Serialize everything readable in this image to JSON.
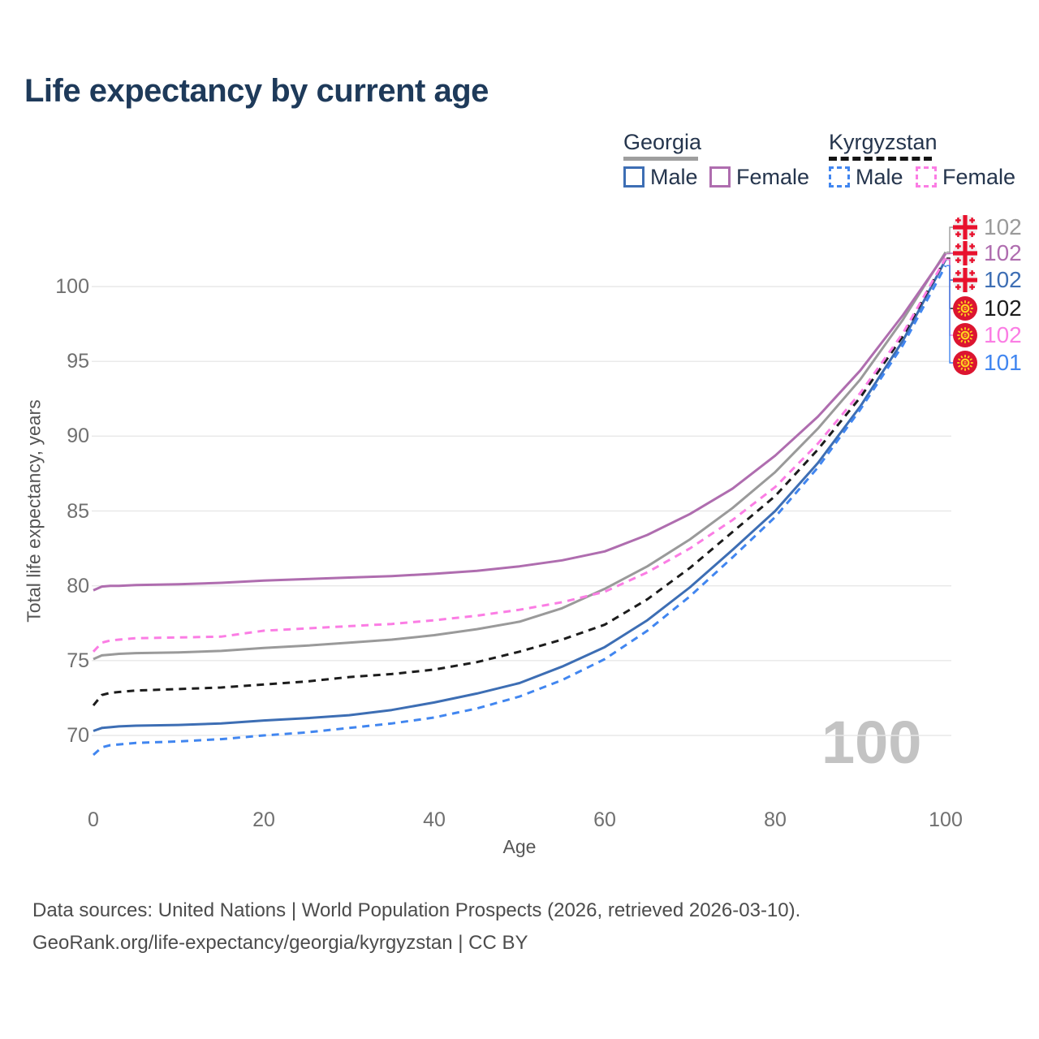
{
  "title": "Life expectancy by current age",
  "legend": {
    "groups": [
      {
        "country": "Georgia",
        "line_style": "solid",
        "underline_color": "#9e9e9e",
        "items": [
          {
            "label": "Male",
            "color": "#3d6eb4"
          },
          {
            "label": "Female",
            "color": "#af6daf"
          }
        ]
      },
      {
        "country": "Kyrgyzstan",
        "line_style": "dashed",
        "underline_color": "#141414",
        "items": [
          {
            "label": "Male",
            "color": "#4186f0"
          },
          {
            "label": "Female",
            "color": "#fb7de4"
          }
        ]
      }
    ]
  },
  "chart_data": {
    "type": "line",
    "title": "Life expectancy by current age",
    "xlabel": "Age",
    "ylabel": "Total life expectancy, years",
    "xlim": [
      0,
      100
    ],
    "ylim": [
      67,
      103
    ],
    "xticks": [
      0,
      20,
      40,
      60,
      80,
      100
    ],
    "yticks": [
      70,
      75,
      80,
      85,
      90,
      95,
      100
    ],
    "grid": "horizontal",
    "legend_position": "top-right",
    "x": [
      0,
      1,
      2,
      3,
      5,
      10,
      15,
      20,
      25,
      30,
      35,
      40,
      45,
      50,
      55,
      60,
      65,
      70,
      75,
      80,
      85,
      90,
      95,
      100
    ],
    "series": [
      {
        "name": "Georgia (both sexes)",
        "country": "Georgia",
        "sex": "both",
        "color": "#9a9a9a",
        "dash": false,
        "values": [
          75.1,
          75.35,
          75.4,
          75.45,
          75.5,
          75.55,
          75.65,
          75.85,
          76.0,
          76.2,
          76.4,
          76.7,
          77.1,
          77.6,
          78.5,
          79.8,
          81.3,
          83.1,
          85.2,
          87.6,
          90.5,
          93.8,
          97.8,
          102.3
        ],
        "end_label": "102"
      },
      {
        "name": "Georgia Female",
        "country": "Georgia",
        "sex": "female",
        "color": "#af6daf",
        "dash": false,
        "values": [
          79.7,
          79.95,
          80.0,
          80.0,
          80.05,
          80.1,
          80.2,
          80.35,
          80.45,
          80.55,
          80.65,
          80.8,
          81.0,
          81.3,
          81.7,
          82.3,
          83.4,
          84.8,
          86.5,
          88.7,
          91.3,
          94.4,
          98.1,
          102.2
        ],
        "end_label": "102"
      },
      {
        "name": "Georgia Male",
        "country": "Georgia",
        "sex": "male",
        "color": "#3d6eb4",
        "dash": false,
        "values": [
          70.3,
          70.5,
          70.55,
          70.6,
          70.65,
          70.7,
          70.8,
          71.0,
          71.15,
          71.35,
          71.7,
          72.2,
          72.8,
          73.5,
          74.6,
          75.9,
          77.7,
          79.9,
          82.4,
          85.0,
          88.2,
          92.0,
          96.4,
          101.8
        ],
        "end_label": "102"
      },
      {
        "name": "Kyrgyzstan (both sexes)",
        "country": "Kyrgyzstan",
        "sex": "both",
        "color": "#1c1c1c",
        "dash": true,
        "values": [
          72.0,
          72.7,
          72.85,
          72.9,
          73.0,
          73.1,
          73.2,
          73.4,
          73.6,
          73.9,
          74.1,
          74.4,
          74.9,
          75.6,
          76.4,
          77.4,
          79.1,
          81.2,
          83.6,
          86.0,
          89.1,
          92.6,
          96.7,
          101.9
        ],
        "end_label": "102"
      },
      {
        "name": "Kyrgyzstan Female",
        "country": "Kyrgyzstan",
        "sex": "female",
        "color": "#fb7de4",
        "dash": true,
        "values": [
          75.6,
          76.2,
          76.35,
          76.4,
          76.5,
          76.55,
          76.6,
          77.0,
          77.15,
          77.3,
          77.45,
          77.7,
          78.0,
          78.4,
          78.9,
          79.6,
          80.9,
          82.5,
          84.4,
          86.6,
          89.5,
          92.9,
          96.9,
          101.9
        ],
        "end_label": "102"
      },
      {
        "name": "Kyrgyzstan Male",
        "country": "Kyrgyzstan",
        "sex": "male",
        "color": "#4186f0",
        "dash": true,
        "values": [
          68.7,
          69.2,
          69.35,
          69.4,
          69.5,
          69.6,
          69.75,
          70.0,
          70.2,
          70.5,
          70.8,
          71.2,
          71.8,
          72.6,
          73.7,
          75.1,
          77.0,
          79.3,
          81.9,
          84.6,
          87.9,
          91.8,
          96.1,
          101.4
        ],
        "end_label": "101"
      }
    ]
  },
  "end_labels": [
    {
      "value": "102",
      "color": "#9a9a9a",
      "flag": "georgia-flag-icon",
      "series": "Georgia (both sexes)"
    },
    {
      "value": "102",
      "color": "#af6daf",
      "flag": "georgia-flag-icon",
      "series": "Georgia Female"
    },
    {
      "value": "102",
      "color": "#3d6eb4",
      "flag": "georgia-flag-icon",
      "series": "Georgia Male"
    },
    {
      "value": "102",
      "color": "#1c1c1c",
      "flag": "kyrgyzstan-flag-icon",
      "series": "Kyrgyzstan (both sexes)"
    },
    {
      "value": "102",
      "color": "#fb7de4",
      "flag": "kyrgyzstan-flag-icon",
      "series": "Kyrgyzstan Female"
    },
    {
      "value": "101",
      "color": "#4186f0",
      "flag": "kyrgyzstan-flag-icon",
      "series": "Kyrgyzstan Male"
    }
  ],
  "watermark": "100",
  "source": {
    "line1": "Data sources: United Nations | World Population Prospects (2026, retrieved 2026-03-10).",
    "line2": "GeoRank.org/life-expectancy/georgia/kyrgyzstan | CC BY"
  },
  "colors": {
    "title": "#1e3a5a",
    "axis_text": "#707070",
    "grid": "#e8e8e8",
    "watermark": "#c3c3c3",
    "source_text": "#4c4c4c",
    "legend_text": "#25354d",
    "georgia_flag_red": "#e8112d",
    "kyrgyzstan_flag_red": "#dc1530",
    "kyrgyzstan_flag_yellow": "#ffd21f"
  }
}
